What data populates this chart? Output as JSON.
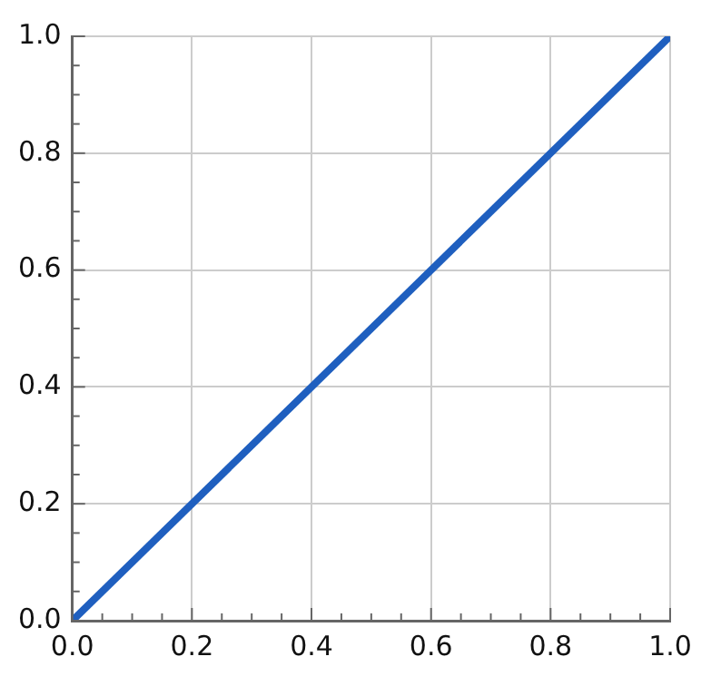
{
  "chart_data": {
    "type": "line",
    "x": [
      0,
      1
    ],
    "series": [
      {
        "color": "#1f5fbf",
        "values": [
          0,
          1
        ]
      }
    ],
    "xlim": [
      0,
      1
    ],
    "ylim": [
      0,
      1
    ],
    "xticks": [
      {
        "value": 0,
        "label": "0.0"
      },
      {
        "value": 0.05,
        "label": null
      },
      {
        "value": 0.1,
        "label": null
      },
      {
        "value": 0.15,
        "label": null
      },
      0.2,
      {
        "value": 0.25,
        "label": null
      },
      {
        "value": 0.3,
        "label": null
      },
      {
        "value": 0.35,
        "label": null
      },
      0.4,
      {
        "value": 0.45,
        "label": null
      },
      {
        "value": 0.5,
        "label": null
      },
      {
        "value": 0.55,
        "label": null
      },
      0.6,
      {
        "value": 0.65,
        "label": null
      },
      {
        "value": 0.7,
        "label": null
      },
      {
        "value": 0.75,
        "label": null
      },
      0.8,
      {
        "value": 0.85,
        "label": null
      },
      {
        "value": 0.9,
        "label": null
      },
      {
        "value": 0.95,
        "label": null
      },
      {
        "value": 1,
        "label": "1.0"
      }
    ],
    "yticks": [
      {
        "value": 0,
        "label": "0.0"
      },
      {
        "value": 0.05,
        "label": null
      },
      {
        "value": 0.1,
        "label": null
      },
      {
        "value": 0.15,
        "label": null
      },
      0.2,
      {
        "value": 0.25,
        "label": null
      },
      {
        "value": 0.3,
        "label": null
      },
      {
        "value": 0.35,
        "label": null
      },
      0.4,
      {
        "value": 0.45,
        "label": null
      },
      {
        "value": 0.5,
        "label": null
      },
      {
        "value": 0.55,
        "label": null
      },
      0.6,
      {
        "value": 0.65,
        "label": null
      },
      {
        "value": 0.7,
        "label": null
      },
      {
        "value": 0.75,
        "label": null
      },
      0.8,
      {
        "value": 0.85,
        "label": null
      },
      {
        "value": 0.9,
        "label": null
      },
      {
        "value": 0.95,
        "label": null
      },
      {
        "value": 1,
        "label": "1.0"
      }
    ],
    "grid": true,
    "marker": "none"
  }
}
